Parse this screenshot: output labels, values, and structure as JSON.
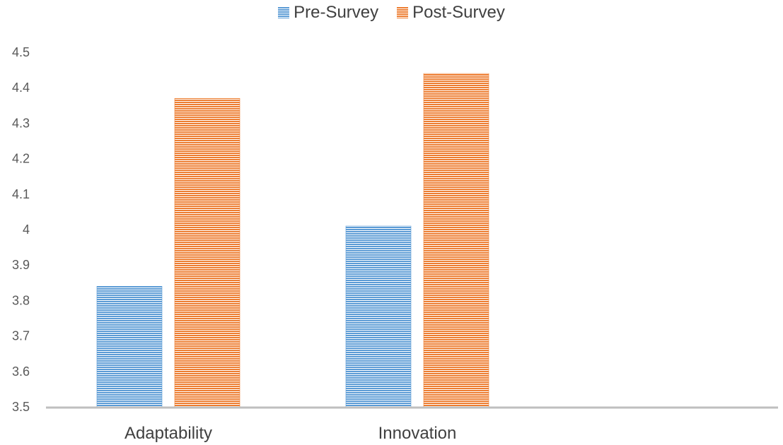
{
  "chart_data": {
    "type": "bar",
    "categories": [
      "Adaptability",
      "Innovation"
    ],
    "series": [
      {
        "name": "Pre-Survey",
        "values": [
          3.84,
          4.01
        ],
        "color": "#5B9BD5"
      },
      {
        "name": "Post-Survey",
        "values": [
          4.37,
          4.44
        ],
        "color": "#ED7D31"
      }
    ],
    "title": "",
    "xlabel": "",
    "ylabel": "",
    "ylim": [
      3.5,
      4.5
    ],
    "yticks": [
      "3.5",
      "3.6",
      "3.7",
      "3.8",
      "3.9",
      "4",
      "4.1",
      "4.2",
      "4.3",
      "4.4",
      "4.5"
    ],
    "legend_position": "top",
    "grid": false,
    "bar_pattern": "horizontal-stripes"
  }
}
